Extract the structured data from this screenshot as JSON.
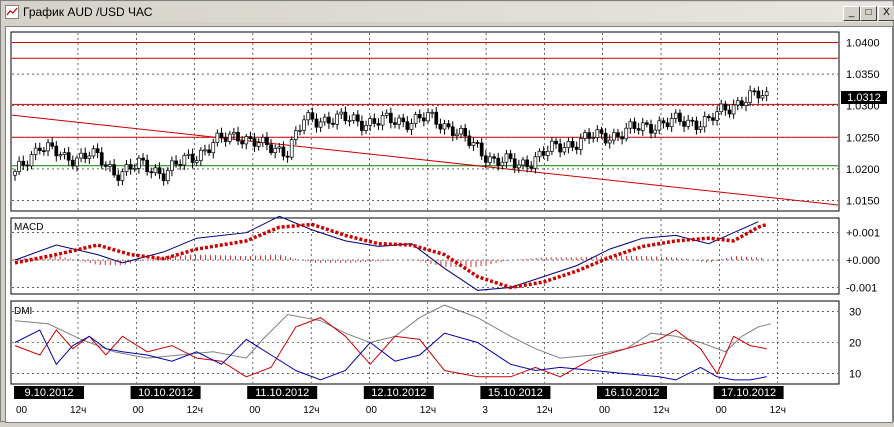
{
  "window": {
    "title": "График AUD /USD ЧАС",
    "buttons": {
      "minimize": "_",
      "maximize": "□",
      "close": "X"
    }
  },
  "price_panel": {
    "y_ticks": [
      "1.0400",
      "1.0350",
      "1.0300",
      "1.0250",
      "1.0200",
      "1.0150"
    ],
    "current_price": "1.0312"
  },
  "macd_panel": {
    "label": "MACD",
    "y_ticks": [
      "+0.001",
      "+0.000",
      "-0.001"
    ]
  },
  "dmi_panel": {
    "label": "DMI",
    "y_ticks": [
      "30",
      "20",
      "10"
    ]
  },
  "date_axis": {
    "dates": [
      "9.10.2012",
      "10.10.2012",
      "11.10.2012",
      "12.10.2012",
      "15.10.2012",
      "16.10.2012",
      "17.10.2012"
    ],
    "hour_labels": [
      "00",
      "12ч",
      "00",
      "12ч",
      "00",
      "12ч",
      "00",
      "12ч",
      "3",
      "12ч",
      "00",
      "12ч",
      "00",
      "12ч"
    ]
  },
  "colors": {
    "candle": "#000000",
    "trendline": "#cc0000",
    "support": "#008000",
    "macd_line": "#000080",
    "macd_signal": "#cc0000",
    "dmi_plus": "#cc0000",
    "dmi_minus": "#0000aa",
    "adx": "#808080"
  },
  "chart_data": {
    "type": "candlestick",
    "instrument": "AUD /USD",
    "timeframe": "ЧАС",
    "ylim": [
      1.0135,
      1.0415
    ],
    "last": 1.0312,
    "horizontal_levels": [
      1.04,
      1.0375,
      1.0302,
      1.025,
      1.0205
    ],
    "trendline": {
      "from": [
        0,
        1.0285
      ],
      "to": [
        1,
        1.0143
      ]
    },
    "close_path": [
      [
        0,
        1.019
      ],
      [
        0.03,
        1.024
      ],
      [
        0.06,
        1.0215
      ],
      [
        0.09,
        1.0225
      ],
      [
        0.12,
        1.0195
      ],
      [
        0.15,
        1.0205
      ],
      [
        0.18,
        1.0195
      ],
      [
        0.21,
        1.0215
      ],
      [
        0.24,
        1.024
      ],
      [
        0.27,
        1.0255
      ],
      [
        0.3,
        1.0235
      ],
      [
        0.33,
        1.023
      ],
      [
        0.35,
        1.0275
      ],
      [
        0.38,
        1.028
      ],
      [
        0.42,
        1.0275
      ],
      [
        0.46,
        1.0275
      ],
      [
        0.5,
        1.028
      ],
      [
        0.53,
        1.0265
      ],
      [
        0.55,
        1.024
      ],
      [
        0.58,
        1.0215
      ],
      [
        0.61,
        1.0205
      ],
      [
        0.64,
        1.0225
      ],
      [
        0.67,
        1.024
      ],
      [
        0.7,
        1.025
      ],
      [
        0.73,
        1.0255
      ],
      [
        0.77,
        1.027
      ],
      [
        0.81,
        1.0275
      ],
      [
        0.84,
        1.0275
      ],
      [
        0.86,
        1.0295
      ],
      [
        0.88,
        1.031
      ],
      [
        0.9,
        1.0315
      ],
      [
        0.915,
        1.0312
      ]
    ],
    "macd": {
      "ylim": [
        -0.0012,
        0.0015
      ],
      "line": [
        [
          0,
          0
        ],
        [
          0.05,
          0.00055
        ],
        [
          0.1,
          0.0002
        ],
        [
          0.13,
          -0.0001
        ],
        [
          0.18,
          0.0003
        ],
        [
          0.22,
          0.0008
        ],
        [
          0.28,
          0.001
        ],
        [
          0.32,
          0.0016
        ],
        [
          0.36,
          0.0011
        ],
        [
          0.4,
          0.0007
        ],
        [
          0.44,
          0.0005
        ],
        [
          0.48,
          0.0006
        ],
        [
          0.52,
          -0.0003
        ],
        [
          0.56,
          -0.0011
        ],
        [
          0.6,
          -0.001
        ],
        [
          0.64,
          -0.0006
        ],
        [
          0.68,
          -0.0002
        ],
        [
          0.72,
          0.0004
        ],
        [
          0.76,
          0.0008
        ],
        [
          0.8,
          0.0009
        ],
        [
          0.84,
          0.0006
        ],
        [
          0.87,
          0.001
        ],
        [
          0.9,
          0.0014
        ]
      ],
      "signal": [
        [
          0,
          -0.0001
        ],
        [
          0.05,
          0.0002
        ],
        [
          0.1,
          0.00055
        ],
        [
          0.14,
          0.0002
        ],
        [
          0.18,
          5e-05
        ],
        [
          0.22,
          0.0004
        ],
        [
          0.28,
          0.0007
        ],
        [
          0.32,
          0.0012
        ],
        [
          0.36,
          0.0013
        ],
        [
          0.4,
          0.0009
        ],
        [
          0.44,
          0.0006
        ],
        [
          0.48,
          0.00055
        ],
        [
          0.52,
          0.0002
        ],
        [
          0.56,
          -0.0006
        ],
        [
          0.6,
          -0.001
        ],
        [
          0.64,
          -0.0008
        ],
        [
          0.68,
          -0.0004
        ],
        [
          0.72,
          0.0001
        ],
        [
          0.76,
          0.0005
        ],
        [
          0.8,
          0.0007
        ],
        [
          0.84,
          0.0008
        ],
        [
          0.87,
          0.0007
        ],
        [
          0.9,
          0.0012
        ],
        [
          0.91,
          0.0013
        ]
      ]
    },
    "dmi": {
      "ylim": [
        7,
        33
      ],
      "plus": [
        [
          0,
          19
        ],
        [
          0.03,
          16
        ],
        [
          0.05,
          24
        ],
        [
          0.07,
          18
        ],
        [
          0.09,
          22
        ],
        [
          0.11,
          16
        ],
        [
          0.13,
          22
        ],
        [
          0.16,
          17
        ],
        [
          0.19,
          19
        ],
        [
          0.22,
          15
        ],
        [
          0.25,
          14
        ],
        [
          0.28,
          9
        ],
        [
          0.31,
          12
        ],
        [
          0.34,
          25
        ],
        [
          0.37,
          28
        ],
        [
          0.4,
          22
        ],
        [
          0.43,
          13
        ],
        [
          0.46,
          22
        ],
        [
          0.49,
          21
        ],
        [
          0.52,
          11
        ],
        [
          0.56,
          9
        ],
        [
          0.6,
          9
        ],
        [
          0.63,
          12
        ],
        [
          0.66,
          9
        ],
        [
          0.7,
          15
        ],
        [
          0.74,
          18
        ],
        [
          0.78,
          21
        ],
        [
          0.8,
          24
        ],
        [
          0.83,
          18
        ],
        [
          0.85,
          10
        ],
        [
          0.87,
          22
        ],
        [
          0.89,
          19
        ],
        [
          0.91,
          18
        ]
      ],
      "minus": [
        [
          0,
          20
        ],
        [
          0.03,
          24
        ],
        [
          0.05,
          13
        ],
        [
          0.07,
          19
        ],
        [
          0.09,
          22
        ],
        [
          0.11,
          18
        ],
        [
          0.13,
          17
        ],
        [
          0.16,
          16
        ],
        [
          0.19,
          14
        ],
        [
          0.22,
          17
        ],
        [
          0.25,
          13
        ],
        [
          0.28,
          21
        ],
        [
          0.31,
          16
        ],
        [
          0.34,
          11
        ],
        [
          0.37,
          8
        ],
        [
          0.4,
          11
        ],
        [
          0.43,
          20
        ],
        [
          0.46,
          14
        ],
        [
          0.49,
          16
        ],
        [
          0.52,
          23
        ],
        [
          0.56,
          20
        ],
        [
          0.6,
          13
        ],
        [
          0.63,
          11
        ],
        [
          0.66,
          12
        ],
        [
          0.7,
          11
        ],
        [
          0.74,
          10
        ],
        [
          0.78,
          9
        ],
        [
          0.8,
          8
        ],
        [
          0.83,
          12
        ],
        [
          0.85,
          9
        ],
        [
          0.87,
          8
        ],
        [
          0.89,
          8
        ],
        [
          0.91,
          9
        ]
      ],
      "adx": [
        [
          0,
          27
        ],
        [
          0.04,
          26
        ],
        [
          0.08,
          21
        ],
        [
          0.12,
          17
        ],
        [
          0.16,
          15
        ],
        [
          0.2,
          16
        ],
        [
          0.24,
          17
        ],
        [
          0.28,
          15
        ],
        [
          0.3,
          21
        ],
        [
          0.33,
          29
        ],
        [
          0.37,
          27
        ],
        [
          0.4,
          23
        ],
        [
          0.43,
          20
        ],
        [
          0.46,
          22
        ],
        [
          0.49,
          28
        ],
        [
          0.52,
          32
        ],
        [
          0.56,
          28
        ],
        [
          0.6,
          22
        ],
        [
          0.63,
          18
        ],
        [
          0.66,
          15
        ],
        [
          0.7,
          16
        ],
        [
          0.74,
          18
        ],
        [
          0.77,
          23
        ],
        [
          0.8,
          22
        ],
        [
          0.83,
          20
        ],
        [
          0.86,
          17
        ],
        [
          0.88,
          22
        ],
        [
          0.9,
          25
        ],
        [
          0.915,
          26
        ]
      ]
    }
  }
}
